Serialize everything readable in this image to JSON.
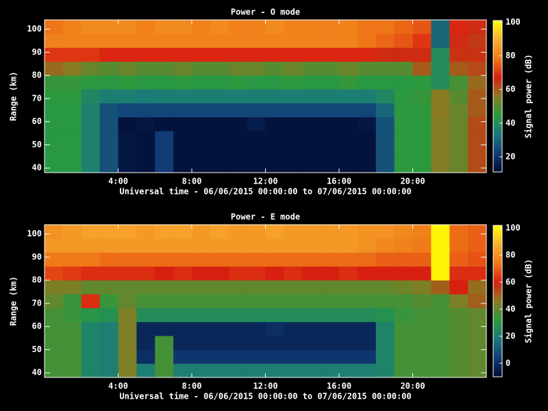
{
  "chart_data": [
    {
      "type": "heatmap",
      "title": "Power - O mode",
      "x_label": "Universal time - 06/06/2015 00:00:00 to 07/06/2015 00:00:00",
      "y_label": "Range (km)",
      "colorbar_label": "Signal power (dB)",
      "x_bins": [
        0,
        1,
        2,
        3,
        4,
        5,
        6,
        7,
        8,
        9,
        10,
        11,
        12,
        13,
        14,
        15,
        16,
        17,
        18,
        19,
        20,
        21,
        22,
        23,
        24
      ],
      "y_bins": [
        38,
        44,
        50,
        56,
        62,
        68,
        74,
        80,
        86,
        92,
        98,
        104
      ],
      "xlim": [
        0,
        24
      ],
      "ylim": [
        38,
        104
      ],
      "zlim": [
        11,
        101
      ],
      "xticks": [
        {
          "value": 4,
          "label": "4:00"
        },
        {
          "value": 8,
          "label": "8:00"
        },
        {
          "value": 12,
          "label": "12:00"
        },
        {
          "value": 16,
          "label": "16:00"
        },
        {
          "value": 20,
          "label": "20:00"
        }
      ],
      "yticks": [
        40,
        50,
        60,
        70,
        80,
        90,
        100
      ],
      "zticks": [
        20,
        40,
        60,
        80,
        100
      ],
      "colormap": [
        "#000a30",
        "#123c78",
        "#1a7a7a",
        "#2a9a40",
        "#8a7a20",
        "#d82010",
        "#f07a18",
        "#f8b030",
        "#ffff00"
      ],
      "z": [
        [
          44,
          44,
          36,
          26,
          14,
          13,
          22,
          13,
          13,
          13,
          13,
          13,
          13,
          13,
          13,
          13,
          13,
          13,
          26,
          45,
          45,
          55,
          52,
          62
        ],
        [
          44,
          44,
          36,
          26,
          14,
          13,
          22,
          13,
          13,
          13,
          13,
          13,
          13,
          13,
          13,
          13,
          13,
          13,
          26,
          45,
          45,
          55,
          52,
          62
        ],
        [
          44,
          44,
          36,
          26,
          14,
          13,
          22,
          13,
          13,
          13,
          13,
          13,
          13,
          13,
          13,
          13,
          13,
          13,
          26,
          45,
          45,
          55,
          52,
          62
        ],
        [
          44,
          44,
          36,
          26,
          13,
          14,
          13,
          13,
          13,
          13,
          13,
          15,
          13,
          13,
          13,
          13,
          13,
          14,
          26,
          45,
          45,
          55,
          52,
          62
        ],
        [
          44,
          44,
          36,
          26,
          24,
          24,
          24,
          24,
          24,
          24,
          24,
          24,
          24,
          24,
          24,
          24,
          24,
          24,
          30,
          45,
          45,
          56,
          52,
          60
        ],
        [
          45,
          45,
          38,
          35,
          35,
          34,
          35,
          35,
          35,
          35,
          35,
          35,
          35,
          35,
          35,
          35,
          35,
          35,
          38,
          45,
          46,
          56,
          50,
          60
        ],
        [
          46,
          46,
          45,
          44,
          45,
          44,
          44,
          45,
          44,
          44,
          45,
          44,
          44,
          45,
          44,
          44,
          46,
          44,
          44,
          44,
          45,
          40,
          48,
          58
        ],
        [
          58,
          56,
          52,
          50,
          52,
          50,
          50,
          52,
          50,
          50,
          52,
          52,
          50,
          52,
          50,
          50,
          52,
          50,
          50,
          50,
          60,
          40,
          60,
          62
        ],
        [
          70,
          70,
          70,
          68,
          68,
          68,
          68,
          68,
          68,
          68,
          68,
          68,
          68,
          68,
          68,
          68,
          68,
          68,
          66,
          66,
          66,
          40,
          65,
          65
        ],
        [
          80,
          80,
          80,
          80,
          80,
          80,
          80,
          80,
          80,
          80,
          80,
          80,
          80,
          80,
          80,
          80,
          80,
          78,
          76,
          74,
          70,
          30,
          66,
          64
        ],
        [
          78,
          80,
          82,
          82,
          82,
          80,
          82,
          82,
          80,
          82,
          80,
          80,
          82,
          80,
          80,
          80,
          80,
          78,
          78,
          76,
          74,
          30,
          68,
          66
        ]
      ]
    },
    {
      "type": "heatmap",
      "title": "Power - E mode",
      "x_label": "Universal time - 06/06/2015 00:00:00 to 07/06/2015 00:00:00",
      "y_label": "Range (km)",
      "colorbar_label": "Signal power (dB)",
      "x_bins": [
        0,
        1,
        2,
        3,
        4,
        5,
        6,
        7,
        8,
        9,
        10,
        11,
        12,
        13,
        14,
        15,
        16,
        17,
        18,
        19,
        20,
        21,
        22,
        23,
        24
      ],
      "y_bins": [
        38,
        44,
        50,
        56,
        62,
        68,
        74,
        80,
        86,
        92,
        98,
        104
      ],
      "xlim": [
        0,
        24
      ],
      "ylim": [
        38,
        104
      ],
      "zlim": [
        -10,
        102
      ],
      "xticks": [
        {
          "value": 4,
          "label": "4:00"
        },
        {
          "value": 8,
          "label": "8:00"
        },
        {
          "value": 12,
          "label": "12:00"
        },
        {
          "value": 16,
          "label": "16:00"
        },
        {
          "value": 20,
          "label": "20:00"
        }
      ],
      "yticks": [
        40,
        50,
        60,
        70,
        80,
        90,
        100
      ],
      "zticks": [
        0,
        20,
        40,
        60,
        80,
        100
      ],
      "colormap": [
        "#000a30",
        "#123c78",
        "#1a7a7a",
        "#2a9a40",
        "#8a7a20",
        "#d82010",
        "#f07a18",
        "#f8b030",
        "#ffff00"
      ],
      "z": [
        [
          36,
          36,
          22,
          20,
          44,
          20,
          36,
          20,
          20,
          20,
          20,
          20,
          20,
          20,
          20,
          20,
          20,
          20,
          22,
          36,
          36,
          36,
          38,
          40
        ],
        [
          36,
          36,
          22,
          20,
          44,
          0,
          36,
          2,
          2,
          2,
          2,
          2,
          2,
          2,
          2,
          2,
          2,
          2,
          22,
          36,
          36,
          36,
          38,
          40
        ],
        [
          36,
          36,
          22,
          20,
          44,
          -2,
          36,
          -2,
          -2,
          -2,
          -2,
          -2,
          -2,
          -2,
          -2,
          -2,
          -2,
          -2,
          22,
          36,
          36,
          36,
          38,
          40
        ],
        [
          36,
          36,
          22,
          20,
          44,
          -2,
          -2,
          -2,
          -2,
          -2,
          -2,
          -2,
          0,
          -2,
          -2,
          -2,
          -2,
          -2,
          22,
          36,
          36,
          36,
          38,
          40
        ],
        [
          36,
          34,
          30,
          28,
          44,
          26,
          26,
          26,
          26,
          26,
          26,
          26,
          26,
          26,
          26,
          26,
          26,
          26,
          28,
          34,
          36,
          36,
          38,
          40
        ],
        [
          40,
          34,
          62,
          34,
          40,
          36,
          36,
          36,
          36,
          36,
          36,
          36,
          36,
          36,
          36,
          36,
          36,
          36,
          36,
          36,
          38,
          36,
          44,
          50
        ],
        [
          44,
          44,
          40,
          40,
          40,
          40,
          40,
          40,
          40,
          40,
          40,
          40,
          40,
          40,
          40,
          40,
          40,
          40,
          40,
          42,
          44,
          50,
          60,
          48
        ],
        [
          66,
          64,
          62,
          62,
          62,
          62,
          60,
          62,
          60,
          60,
          62,
          62,
          60,
          62,
          60,
          60,
          62,
          60,
          60,
          60,
          60,
          100,
          62,
          62
        ],
        [
          74,
          74,
          74,
          72,
          72,
          72,
          72,
          72,
          72,
          72,
          72,
          72,
          72,
          72,
          72,
          72,
          72,
          72,
          70,
          70,
          70,
          100,
          70,
          68
        ],
        [
          82,
          82,
          82,
          82,
          82,
          82,
          82,
          82,
          82,
          82,
          82,
          82,
          82,
          82,
          82,
          82,
          82,
          80,
          78,
          76,
          74,
          100,
          72,
          70
        ],
        [
          80,
          82,
          84,
          84,
          84,
          82,
          84,
          84,
          82,
          84,
          82,
          82,
          84,
          82,
          82,
          82,
          82,
          80,
          80,
          78,
          76,
          100,
          72,
          70
        ]
      ]
    }
  ]
}
